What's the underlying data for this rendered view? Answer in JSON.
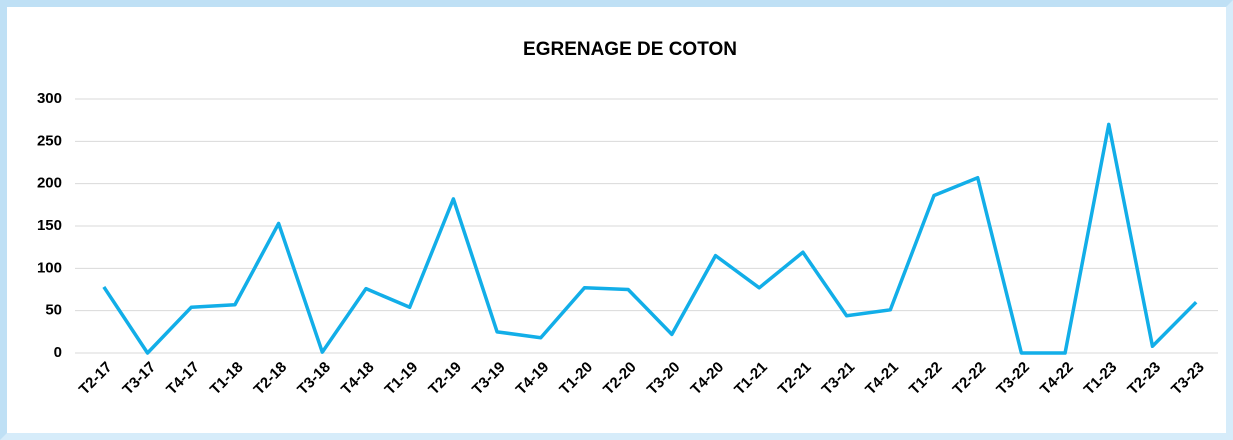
{
  "chart_data": {
    "type": "line",
    "title": "EGRENAGE DE COTON",
    "categories": [
      "T2-17",
      "T3-17",
      "T4-17",
      "T1-18",
      "T2-18",
      "T3-18",
      "T4-18",
      "T1-19",
      "T2-19",
      "T3-19",
      "T4-19",
      "T1-20",
      "T2-20",
      "T3-20",
      "T4-20",
      "T1-21",
      "T2-21",
      "T3-21",
      "T4-21",
      "T1-22",
      "T2-22",
      "T3-22",
      "T4-22",
      "T1-23",
      "T2-23",
      "T3-23"
    ],
    "series": [
      {
        "name": "EGRENAGE DE COTON",
        "color": "#12aee8",
        "values": [
          78,
          0,
          54,
          57,
          153,
          1,
          76,
          54,
          182,
          25,
          18,
          77,
          75,
          22,
          115,
          77,
          119,
          44,
          51,
          186,
          207,
          0,
          0,
          270,
          8,
          60
        ]
      }
    ],
    "ylim": [
      0,
      300
    ],
    "yticks": [
      0,
      50,
      100,
      150,
      200,
      250,
      300
    ],
    "grid": true
  }
}
